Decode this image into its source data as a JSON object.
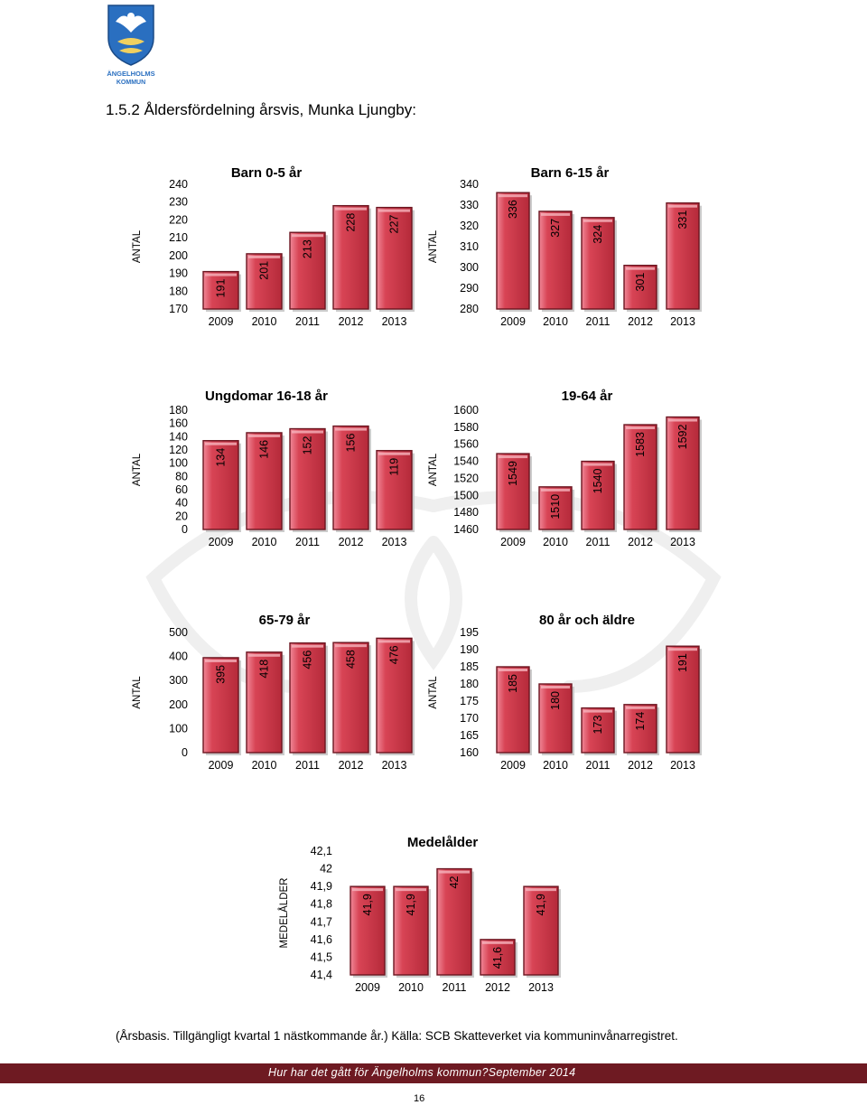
{
  "logo": {
    "text_line1": "ÄNGELHOLMS",
    "text_line2": "KOMMUN"
  },
  "heading": "1.5.2 Åldersfördelning årsvis, Munka Ljungby:",
  "colors": {
    "bar_fill": "#d84455",
    "bar_edge": "#6b1520",
    "bar_highlight": "#f08898",
    "footer_band": "#6e1a22"
  },
  "chart_data": [
    {
      "type": "bar",
      "title": "Barn 0-5 år",
      "ylabel": "ANTAL",
      "xlabel": "",
      "categories": [
        "2009",
        "2010",
        "2011",
        "2012",
        "2013"
      ],
      "values": [
        191,
        201,
        213,
        228,
        227
      ],
      "value_labels": [
        "191",
        "201",
        "213",
        "228",
        "227"
      ],
      "ylim": [
        170,
        240
      ],
      "yticks": [
        170,
        180,
        190,
        200,
        210,
        220,
        230,
        240
      ],
      "ytick_labels": [
        "170",
        "180",
        "190",
        "200",
        "210",
        "220",
        "230",
        "240"
      ]
    },
    {
      "type": "bar",
      "title": "Barn 6-15 år",
      "ylabel": "ANTAL",
      "xlabel": "",
      "categories": [
        "2009",
        "2010",
        "2011",
        "2012",
        "2013"
      ],
      "values": [
        336,
        327,
        324,
        301,
        331
      ],
      "value_labels": [
        "336",
        "327",
        "324",
        "301",
        "331"
      ],
      "ylim": [
        280,
        340
      ],
      "yticks": [
        280,
        290,
        300,
        310,
        320,
        330,
        340
      ],
      "ytick_labels": [
        "280",
        "290",
        "300",
        "310",
        "320",
        "330",
        "340"
      ]
    },
    {
      "type": "bar",
      "title": "Ungdomar 16-18 år",
      "ylabel": "ANTAL",
      "xlabel": "",
      "categories": [
        "2009",
        "2010",
        "2011",
        "2012",
        "2013"
      ],
      "values": [
        134,
        146,
        152,
        156,
        119
      ],
      "value_labels": [
        "134",
        "146",
        "152",
        "156",
        "119"
      ],
      "ylim": [
        0,
        180
      ],
      "yticks": [
        0,
        20,
        40,
        60,
        80,
        100,
        120,
        140,
        160,
        180
      ],
      "ytick_labels": [
        "0",
        "20",
        "40",
        "60",
        "80",
        "100",
        "120",
        "140",
        "160",
        "180"
      ]
    },
    {
      "type": "bar",
      "title": "19-64 år",
      "ylabel": "ANTAL",
      "xlabel": "",
      "categories": [
        "2009",
        "2010",
        "2011",
        "2012",
        "2013"
      ],
      "values": [
        1549,
        1510,
        1540,
        1583,
        1592
      ],
      "value_labels": [
        "1549",
        "1510",
        "1540",
        "1583",
        "1592"
      ],
      "ylim": [
        1460,
        1600
      ],
      "yticks": [
        1460,
        1480,
        1500,
        1520,
        1540,
        1560,
        1580,
        1600
      ],
      "ytick_labels": [
        "1460",
        "1480",
        "1500",
        "1520",
        "1540",
        "1560",
        "1580",
        "1600"
      ]
    },
    {
      "type": "bar",
      "title": "65-79 år",
      "ylabel": "ANTAL",
      "xlabel": "",
      "categories": [
        "2009",
        "2010",
        "2011",
        "2012",
        "2013"
      ],
      "values": [
        395,
        418,
        456,
        458,
        476
      ],
      "value_labels": [
        "395",
        "418",
        "456",
        "458",
        "476"
      ],
      "ylim": [
        0,
        500
      ],
      "yticks": [
        0,
        100,
        200,
        300,
        400,
        500
      ],
      "ytick_labels": [
        "0",
        "100",
        "200",
        "300",
        "400",
        "500"
      ]
    },
    {
      "type": "bar",
      "title": "80 år och äldre",
      "ylabel": "ANTAL",
      "xlabel": "",
      "categories": [
        "2009",
        "2010",
        "2011",
        "2012",
        "2013"
      ],
      "values": [
        185,
        180,
        173,
        174,
        191
      ],
      "value_labels": [
        "185",
        "180",
        "173",
        "174",
        "191"
      ],
      "ylim": [
        160,
        195
      ],
      "yticks": [
        160,
        165,
        170,
        175,
        180,
        185,
        190,
        195
      ],
      "ytick_labels": [
        "160",
        "165",
        "170",
        "175",
        "180",
        "185",
        "190",
        "195"
      ]
    },
    {
      "type": "bar",
      "title": "Medelålder",
      "ylabel": "MEDELÅLDER",
      "xlabel": "",
      "categories": [
        "2009",
        "2010",
        "2011",
        "2012",
        "2013"
      ],
      "values": [
        41.9,
        41.9,
        42.0,
        41.6,
        41.9
      ],
      "value_labels": [
        "41,9",
        "41,9",
        "42",
        "41,6",
        "41,9"
      ],
      "ylim": [
        41.4,
        42.1
      ],
      "yticks": [
        41.4,
        41.5,
        41.6,
        41.7,
        41.8,
        41.9,
        42.0,
        42.1
      ],
      "ytick_labels": [
        "41,4",
        "41,5",
        "41,6",
        "41,7",
        "41,8",
        "41,9",
        "42",
        "42,1"
      ]
    }
  ],
  "footnote": "(Årsbasis. Tillgängligt kvartal 1 nästkommande år.) Källa: SCB Skatteverket via kommuninvånarregistret.",
  "footer_text": "Hur har det gått för Ängelholms kommun?September 2014",
  "page_number": "16"
}
